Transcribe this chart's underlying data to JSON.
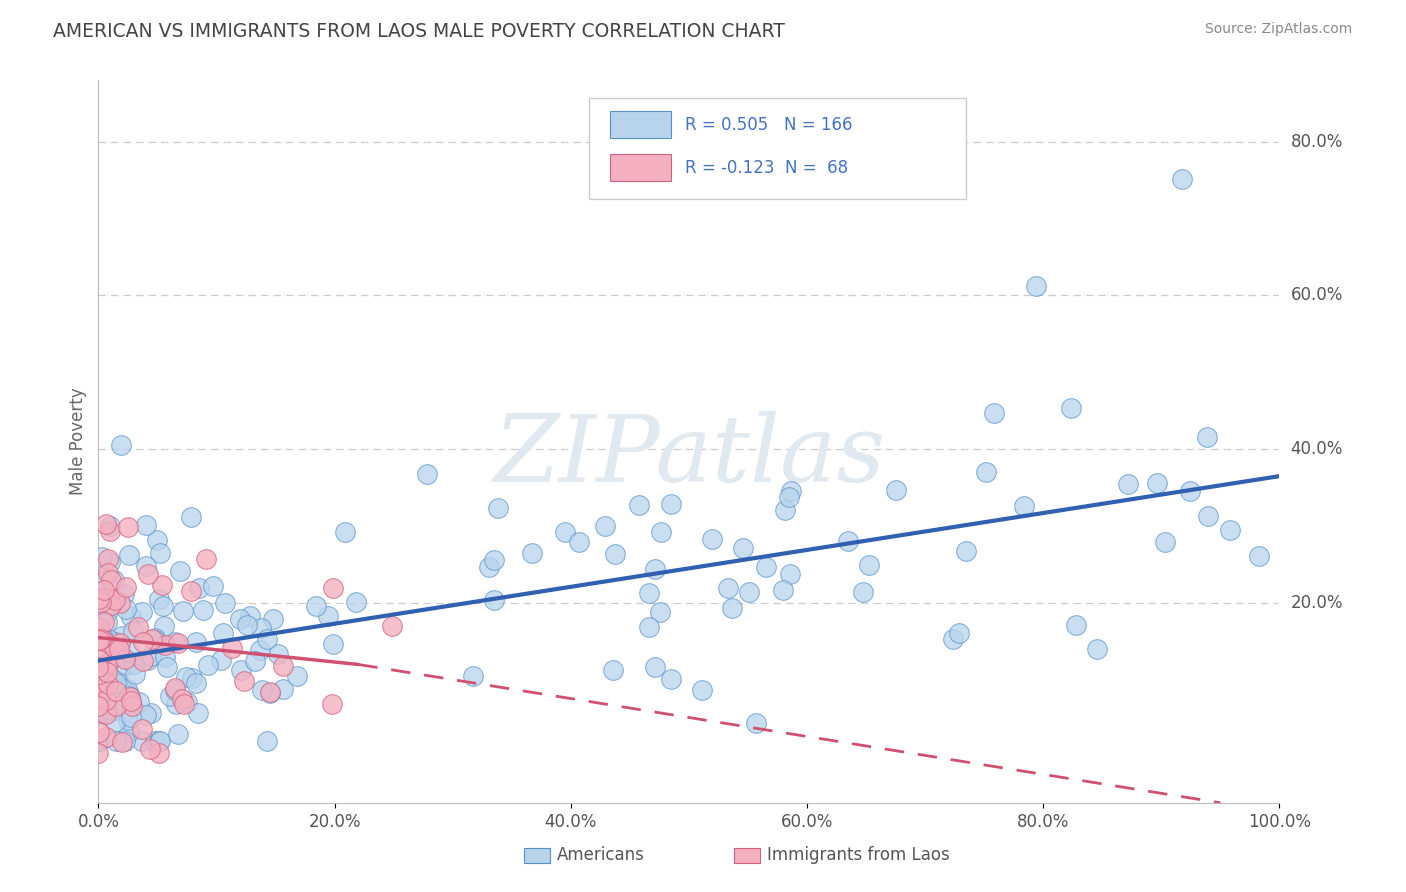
{
  "title": "AMERICAN VS IMMIGRANTS FROM LAOS MALE POVERTY CORRELATION CHART",
  "source_text": "Source: ZipAtlas.com",
  "ylabel": "Male Poverty",
  "xlim": [
    0,
    1
  ],
  "ylim": [
    -0.06,
    0.88
  ],
  "x_tick_labels": [
    "0.0%",
    "20.0%",
    "40.0%",
    "60.0%",
    "80.0%",
    "100.0%"
  ],
  "x_tick_positions": [
    0,
    0.2,
    0.4,
    0.6,
    0.8,
    1.0
  ],
  "y_tick_labels": [
    "20.0%",
    "40.0%",
    "60.0%",
    "80.0%"
  ],
  "y_tick_positions": [
    0.2,
    0.4,
    0.6,
    0.8
  ],
  "r_american": 0.505,
  "n_american": 166,
  "r_laos": -0.123,
  "n_laos": 68,
  "blue_fill": "#b8d4ec",
  "blue_edge": "#5590c8",
  "pink_fill": "#f4b0c0",
  "pink_edge": "#d06080",
  "blue_line": "#3060b0",
  "pink_line": "#d05070",
  "legend_text_color": "#4472c4",
  "title_color": "#444444",
  "source_color": "#888888",
  "grid_color": "#cccccc",
  "background_color": "#ffffff",
  "watermark_text": "ZIPatlas",
  "watermark_color": "#e0e8f0",
  "trend_am_x0": 0.0,
  "trend_am_y0": 0.125,
  "trend_am_x1": 1.0,
  "trend_am_y1": 0.365,
  "trend_la_x0": 0.0,
  "trend_la_y0": 0.155,
  "trend_la_x1": 0.95,
  "trend_la_y1": -0.06,
  "trend_la_solid_end": 0.22,
  "trend_la_solid_y_end": 0.12
}
